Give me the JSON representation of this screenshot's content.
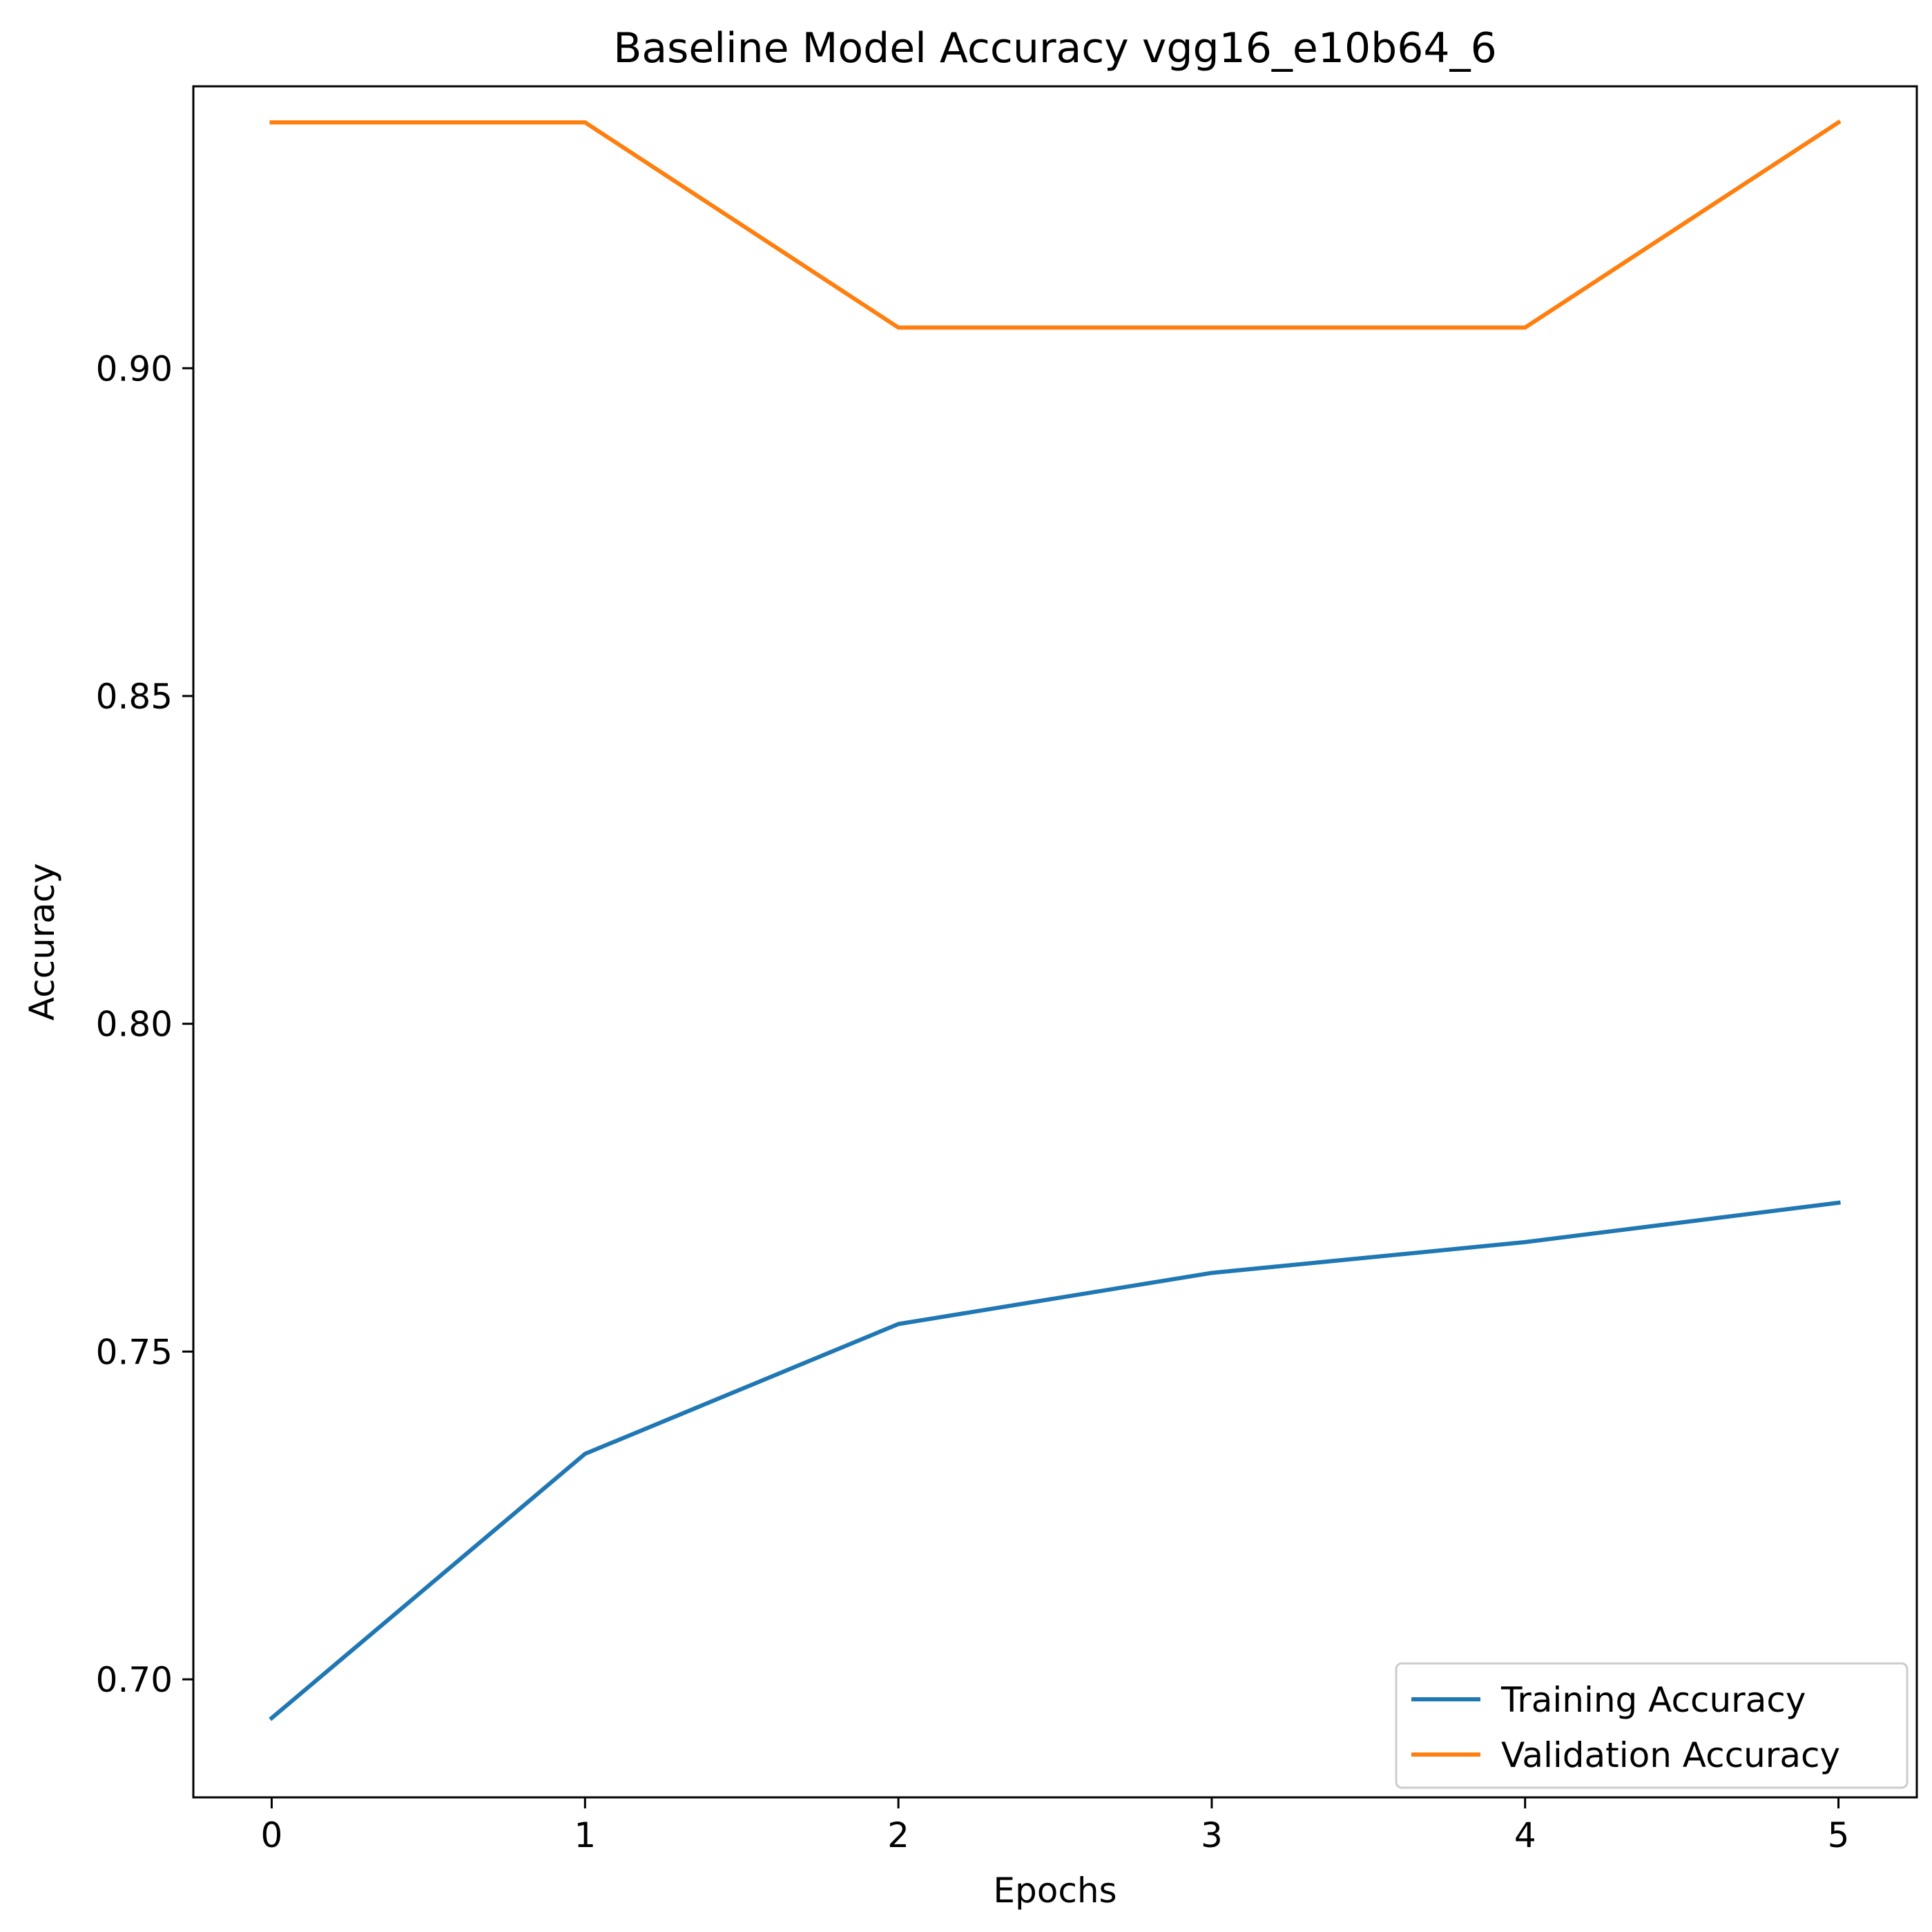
{
  "chart_data": {
    "type": "line",
    "title": "Baseline Model Accuracy vgg16_e10b64_6",
    "xlabel": "Epochs",
    "ylabel": "Accuracy",
    "x": [
      0,
      1,
      2,
      3,
      4,
      5
    ],
    "xticks": [
      "0",
      "1",
      "2",
      "3",
      "4",
      "5"
    ],
    "yticks": [
      "0.70",
      "0.75",
      "0.80",
      "0.85",
      "0.90"
    ],
    "xlim": [
      -0.25,
      5.25
    ],
    "ylim": [
      0.682,
      0.943
    ],
    "grid": false,
    "legend_position": "bottom-right",
    "series": [
      {
        "name": "Training Accuracy",
        "color": "#1f77b4",
        "values": [
          0.6941,
          0.7344,
          0.7542,
          0.762,
          0.7667,
          0.7727
        ]
      },
      {
        "name": "Validation Accuracy",
        "color": "#ff7f0e",
        "values": [
          0.9375,
          0.9375,
          0.9062,
          0.9062,
          0.9062,
          0.9375
        ]
      }
    ]
  }
}
